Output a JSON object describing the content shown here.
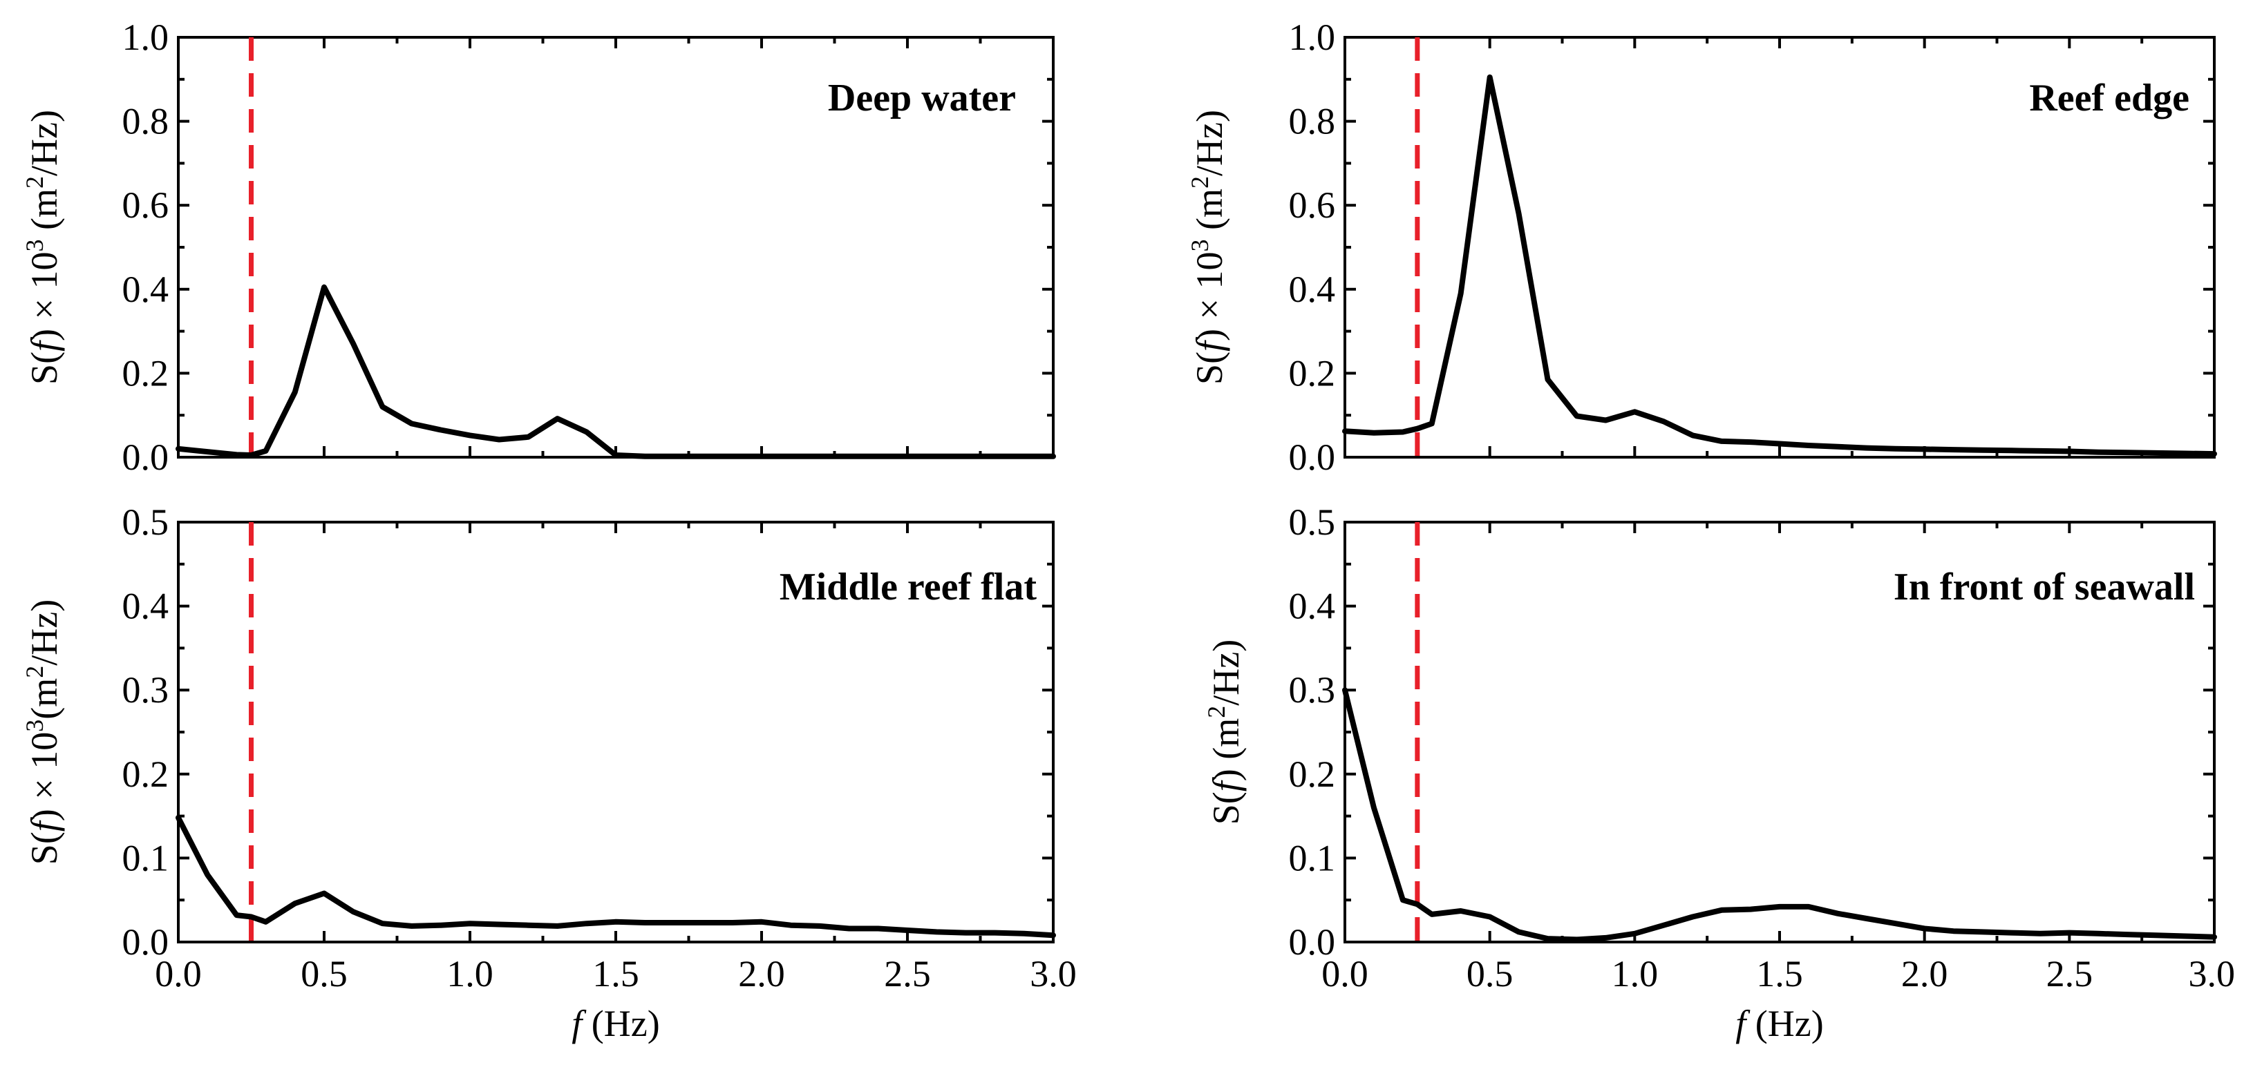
{
  "chart_data": [
    {
      "type": "line",
      "id": "deep",
      "label": "Deep water",
      "ylabel": "S(f) × 10³ (m²/Hz)",
      "ylim": [
        0,
        1.0
      ],
      "yticks": [
        "0.0",
        "0.2",
        "0.4",
        "0.6",
        "0.8",
        "1.0"
      ],
      "xlim": [
        0,
        3.0
      ],
      "xticks": [
        "0.0",
        "0.5",
        "1.0",
        "1.5",
        "2.0",
        "2.5",
        "3.0"
      ],
      "show_xtick_labels": false,
      "ref_line_x": 0.25,
      "x": [
        0.0,
        0.1,
        0.2,
        0.25,
        0.3,
        0.4,
        0.5,
        0.6,
        0.7,
        0.8,
        0.9,
        1.0,
        1.1,
        1.2,
        1.3,
        1.4,
        1.5,
        1.6,
        1.7,
        1.8,
        1.9,
        2.0,
        2.1,
        2.2,
        2.3,
        2.4,
        2.5,
        2.6,
        2.7,
        2.8,
        2.9,
        3.0
      ],
      "values": [
        0.02,
        0.013,
        0.006,
        0.005,
        0.015,
        0.155,
        0.405,
        0.27,
        0.12,
        0.08,
        0.065,
        0.052,
        0.042,
        0.048,
        0.092,
        0.06,
        0.005,
        0.002,
        0.002,
        0.002,
        0.002,
        0.002,
        0.002,
        0.002,
        0.002,
        0.002,
        0.002,
        0.002,
        0.002,
        0.002,
        0.002,
        0.002
      ]
    },
    {
      "type": "line",
      "id": "edge",
      "label": "Reef edge",
      "ylabel": "S(f) × 10³ (m²/Hz)",
      "ylim": [
        0,
        1.0
      ],
      "yticks": [
        "0.0",
        "0.2",
        "0.4",
        "0.6",
        "0.8",
        "1.0"
      ],
      "xlim": [
        0,
        3.0
      ],
      "xticks": [
        "0.0",
        "0.5",
        "1.0",
        "1.5",
        "2.0",
        "2.5",
        "3.0"
      ],
      "show_xtick_labels": false,
      "ref_line_x": 0.25,
      "x": [
        0.0,
        0.1,
        0.2,
        0.25,
        0.3,
        0.4,
        0.5,
        0.6,
        0.7,
        0.8,
        0.9,
        1.0,
        1.1,
        1.2,
        1.3,
        1.4,
        1.5,
        1.6,
        1.7,
        1.8,
        1.9,
        2.0,
        2.1,
        2.2,
        2.3,
        2.4,
        2.5,
        2.6,
        2.7,
        2.8,
        2.9,
        3.0
      ],
      "values": [
        0.062,
        0.058,
        0.06,
        0.068,
        0.08,
        0.39,
        0.905,
        0.58,
        0.185,
        0.098,
        0.088,
        0.108,
        0.085,
        0.052,
        0.038,
        0.036,
        0.032,
        0.028,
        0.025,
        0.022,
        0.02,
        0.019,
        0.018,
        0.017,
        0.016,
        0.015,
        0.014,
        0.012,
        0.011,
        0.01,
        0.009,
        0.008
      ]
    },
    {
      "type": "line",
      "id": "middle",
      "label": "Middle reef flat",
      "ylabel": "S(f) × 10³(m²/Hz)",
      "ylim": [
        0,
        0.5
      ],
      "yticks": [
        "0.0",
        "0.1",
        "0.2",
        "0.3",
        "0.4",
        "0.5"
      ],
      "xlim": [
        0,
        3.0
      ],
      "xticks": [
        "0.0",
        "0.5",
        "1.0",
        "1.5",
        "2.0",
        "2.5",
        "3.0"
      ],
      "show_xtick_labels": true,
      "xlabel_italic": "f",
      "xlabel_rest": " (Hz)",
      "ref_line_x": 0.25,
      "x": [
        0.0,
        0.1,
        0.2,
        0.25,
        0.3,
        0.4,
        0.5,
        0.6,
        0.7,
        0.8,
        0.9,
        1.0,
        1.1,
        1.2,
        1.3,
        1.4,
        1.5,
        1.6,
        1.7,
        1.8,
        1.9,
        2.0,
        2.1,
        2.2,
        2.3,
        2.4,
        2.5,
        2.6,
        2.7,
        2.8,
        2.9,
        3.0
      ],
      "values": [
        0.148,
        0.08,
        0.032,
        0.03,
        0.024,
        0.046,
        0.058,
        0.036,
        0.022,
        0.019,
        0.02,
        0.022,
        0.021,
        0.02,
        0.019,
        0.022,
        0.024,
        0.023,
        0.023,
        0.023,
        0.023,
        0.024,
        0.02,
        0.019,
        0.016,
        0.016,
        0.014,
        0.012,
        0.011,
        0.011,
        0.01,
        0.008
      ]
    },
    {
      "type": "line",
      "id": "seawall",
      "label": "In front of seawall",
      "ylabel": "S(f) (m²/Hz)",
      "ylim": [
        0,
        0.5
      ],
      "yticks": [
        "0.0",
        "0.1",
        "0.2",
        "0.3",
        "0.4",
        "0.5"
      ],
      "xlim": [
        0,
        3.0
      ],
      "xticks": [
        "0.0",
        "0.5",
        "1.0",
        "1.5",
        "2.0",
        "2.5",
        "3.0"
      ],
      "show_xtick_labels": true,
      "xlabel_italic": "f",
      "xlabel_rest": " (Hz)",
      "ref_line_x": 0.25,
      "x": [
        0.0,
        0.1,
        0.2,
        0.25,
        0.3,
        0.4,
        0.5,
        0.6,
        0.7,
        0.8,
        0.9,
        1.0,
        1.1,
        1.2,
        1.3,
        1.4,
        1.5,
        1.6,
        1.7,
        1.8,
        1.9,
        2.0,
        2.1,
        2.2,
        2.3,
        2.4,
        2.5,
        2.6,
        2.7,
        2.8,
        2.9,
        3.0
      ],
      "values": [
        0.3,
        0.16,
        0.05,
        0.045,
        0.033,
        0.037,
        0.03,
        0.012,
        0.004,
        0.003,
        0.005,
        0.01,
        0.02,
        0.03,
        0.038,
        0.039,
        0.042,
        0.042,
        0.034,
        0.028,
        0.022,
        0.016,
        0.013,
        0.012,
        0.011,
        0.01,
        0.011,
        0.01,
        0.009,
        0.008,
        0.007,
        0.006
      ]
    }
  ]
}
